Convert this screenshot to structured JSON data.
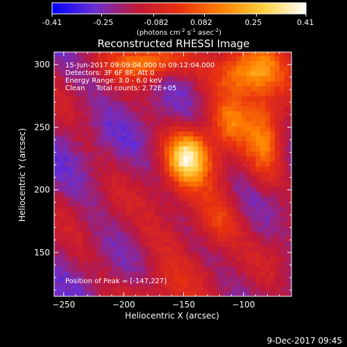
{
  "colorbar": {
    "ticks": [
      "-0.41",
      "-0.25",
      "-0.082",
      "0.082",
      "0.25",
      "0.41"
    ],
    "tick_values": [
      -0.41,
      -0.25,
      -0.082,
      0.082,
      0.25,
      0.41
    ],
    "range": [
      -0.41,
      0.41
    ],
    "units_text": "(photons cm",
    "units_sup1": "-2",
    "units_mid": " s",
    "units_sup2": "-1",
    "units_end": " asec",
    "units_sup3": "-2",
    "units_close": ")",
    "colormap": [
      "#0000ff",
      "#6a2fd0",
      "#c01838",
      "#e83010",
      "#ff8000",
      "#ffd040",
      "#ffffff"
    ]
  },
  "chart_data": {
    "type": "heatmap",
    "title": "Reconstructed RHESSI Image",
    "xlabel": "Heliocentric X (arcsec)",
    "ylabel": "Heliocentric Y (arcsec)",
    "xlim": [
      -258,
      -60
    ],
    "ylim": [
      115,
      310
    ],
    "xticks": [
      -250,
      -200,
      -150,
      -100
    ],
    "yticks": [
      150,
      200,
      250,
      300
    ],
    "xtick_labels": [
      "−250",
      "−200",
      "−150",
      "−100"
    ],
    "ytick_labels": [
      "150",
      "200",
      "250",
      "300"
    ],
    "peak": [
      -147,
      227
    ],
    "sources": [
      {
        "x": -147,
        "y": 227,
        "amp": 0.41,
        "sx": 12,
        "sy": 14
      },
      {
        "x": -95,
        "y": 295,
        "amp": 0.33,
        "sx": 20,
        "sy": 14
      },
      {
        "x": -180,
        "y": 302,
        "amp": 0.3,
        "sx": 20,
        "sy": 9
      },
      {
        "x": -82,
        "y": 240,
        "amp": 0.22,
        "sx": 11,
        "sy": 26
      },
      {
        "x": -120,
        "y": 175,
        "amp": 0.15,
        "sx": 12,
        "sy": 14
      },
      {
        "x": -112,
        "y": 255,
        "amp": 0.14,
        "sx": 10,
        "sy": 12
      },
      {
        "x": -70,
        "y": 150,
        "amp": 0.05,
        "sx": 8,
        "sy": 10
      }
    ],
    "annotations": [
      "15-Jun-2017 09:09:04.000 to 09:12:04.000",
      "Detectors: 3F 6F 8F, Att 0",
      "Energy Range: 3.0 - 6.0 keV",
      "Clean     Total counts: 2.72E+05",
      "Position of Peak = [-147,227]"
    ]
  },
  "footer": {
    "timestamp": "9-Dec-2017 09:45"
  }
}
